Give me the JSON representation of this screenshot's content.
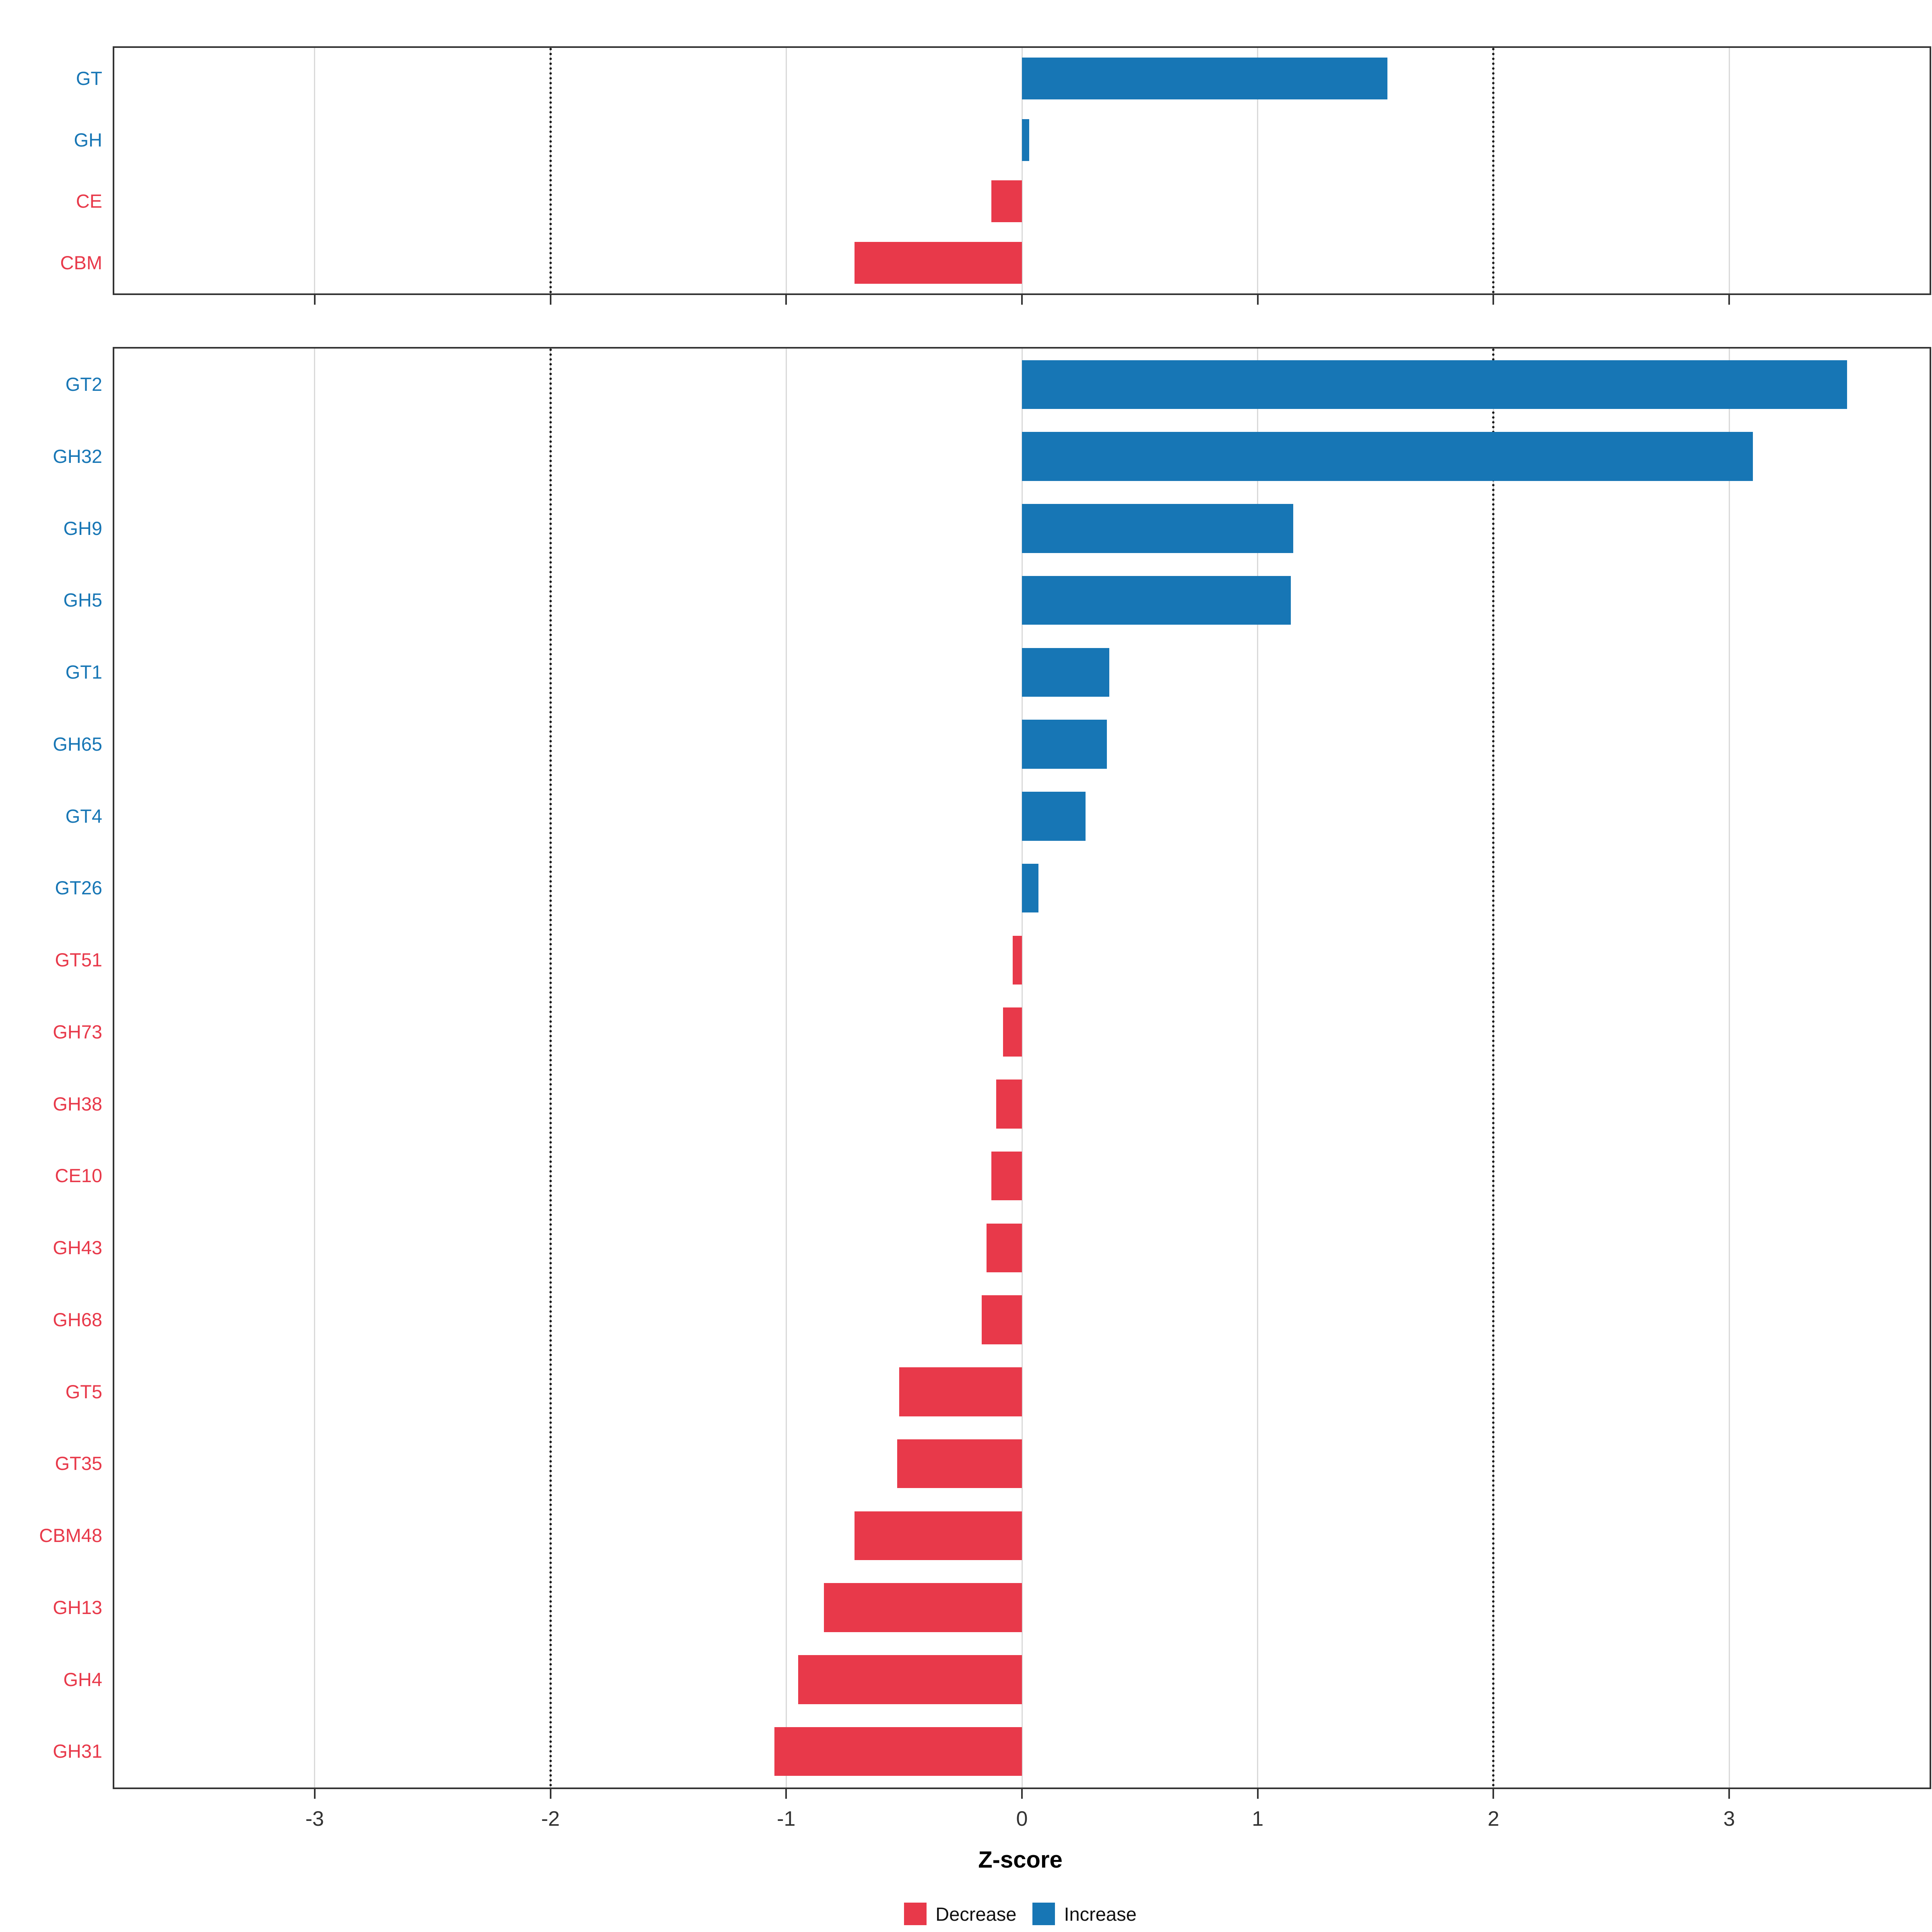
{
  "chart_data": [
    {
      "type": "bar",
      "panel": "top",
      "orientation": "horizontal",
      "xlabel": "Z-score",
      "xlim": [
        -3.85,
        3.85
      ],
      "categories": [
        "GT",
        "GH",
        "CE",
        "CBM"
      ],
      "values": [
        1.55,
        0.03,
        -0.13,
        -0.71
      ]
    },
    {
      "type": "bar",
      "panel": "bottom",
      "orientation": "horizontal",
      "xlabel": "Z-score",
      "xlim": [
        -3.85,
        3.85
      ],
      "categories": [
        "GT2",
        "GH32",
        "GH9",
        "GH5",
        "GT1",
        "GH65",
        "GT4",
        "GT26",
        "GT51",
        "GH73",
        "GH38",
        "CE10",
        "GH43",
        "GH68",
        "GT5",
        "GT35",
        "CBM48",
        "GH13",
        "GH4",
        "GH31"
      ],
      "values": [
        3.5,
        3.1,
        1.15,
        1.14,
        0.37,
        0.36,
        0.27,
        0.07,
        -0.04,
        -0.08,
        -0.11,
        -0.13,
        -0.15,
        -0.17,
        -0.52,
        -0.53,
        -0.71,
        -0.84,
        -0.95,
        -1.05
      ]
    }
  ],
  "axis": {
    "label": "Z-score",
    "ticks": [
      -3,
      -2,
      -1,
      0,
      1,
      2,
      3
    ],
    "reference_lines": [
      -2,
      2
    ]
  },
  "legend": {
    "items": [
      {
        "label": "Decrease",
        "color": "#E8394A"
      },
      {
        "label": "Increase",
        "color": "#1776B5"
      }
    ]
  },
  "colors": {
    "decrease": "#E8394A",
    "increase": "#1776B5",
    "gridline": "#D9D9D9",
    "reference_line": "#1A1A1A",
    "panel_border": "#333333",
    "axis_text": "#333333"
  }
}
